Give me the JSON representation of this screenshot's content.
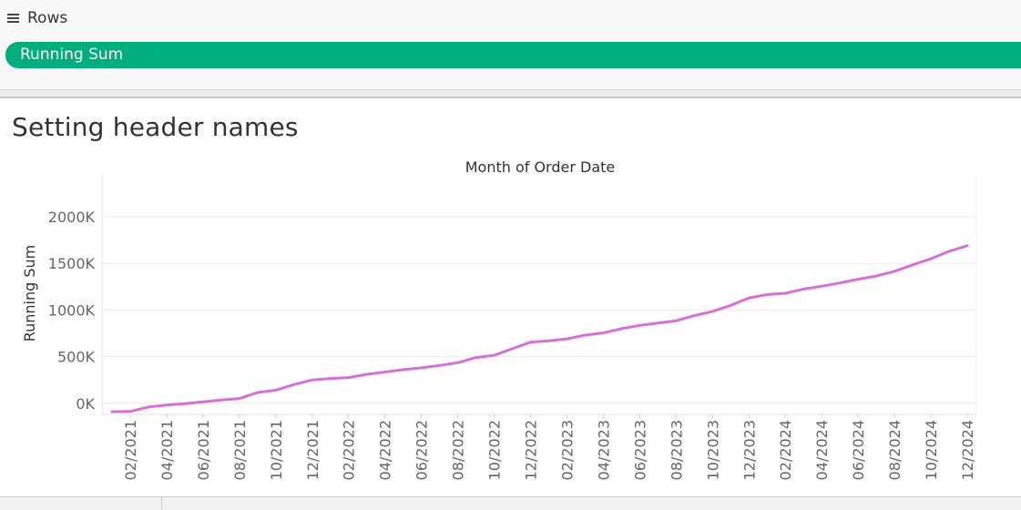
{
  "shelf": {
    "rows_label": "Rows",
    "pill_label": "Running Sum",
    "pill_color": "#00ad7c"
  },
  "sheet": {
    "title": "Setting header names"
  },
  "chart_data": {
    "type": "line",
    "title": "Month of Order Date",
    "ylabel": "Running Sum",
    "xlabel": "",
    "line_color": "#d670d6",
    "ylim": [
      -100,
      2450
    ],
    "yticks": [
      {
        "value": 0,
        "label": "0K"
      },
      {
        "value": 500,
        "label": "500K"
      },
      {
        "value": 1000,
        "label": "1000K"
      },
      {
        "value": 1500,
        "label": "1500K"
      },
      {
        "value": 2000,
        "label": "2000K"
      }
    ],
    "grid": true,
    "x": [
      "01/2021",
      "02/2021",
      "03/2021",
      "04/2021",
      "05/2021",
      "06/2021",
      "07/2021",
      "08/2021",
      "09/2021",
      "10/2021",
      "11/2021",
      "12/2021",
      "01/2022",
      "02/2022",
      "03/2022",
      "04/2022",
      "05/2022",
      "06/2022",
      "07/2022",
      "08/2022",
      "09/2022",
      "10/2022",
      "11/2022",
      "12/2022",
      "01/2023",
      "02/2023",
      "03/2023",
      "04/2023",
      "05/2023",
      "06/2023",
      "07/2023",
      "08/2023",
      "09/2023",
      "10/2023",
      "11/2023",
      "12/2023",
      "01/2024",
      "02/2024",
      "03/2024",
      "04/2024",
      "05/2024",
      "06/2024",
      "07/2024",
      "08/2024",
      "09/2024",
      "10/2024",
      "11/2024",
      "12/2024"
    ],
    "x_tick_labels": [
      "02/2021",
      "04/2021",
      "06/2021",
      "08/2021",
      "10/2021",
      "12/2021",
      "02/2022",
      "04/2022",
      "06/2022",
      "08/2022",
      "10/2022",
      "12/2022",
      "02/2023",
      "04/2023",
      "06/2023",
      "08/2023",
      "10/2023",
      "12/2023",
      "02/2024",
      "04/2024",
      "06/2024",
      "08/2024",
      "10/2024",
      "12/2024"
    ],
    "series": [
      {
        "name": "Running Sum",
        "values": [
          -90,
          -88,
          -40,
          -20,
          -5,
          15,
          35,
          50,
          115,
          140,
          200,
          250,
          265,
          275,
          310,
          335,
          360,
          380,
          405,
          435,
          490,
          515,
          585,
          655,
          670,
          690,
          730,
          755,
          800,
          835,
          860,
          885,
          940,
          985,
          1050,
          1130,
          1165,
          1180,
          1225,
          1255,
          1290,
          1330,
          1365,
          1415,
          1485,
          1550,
          1630,
          1690
        ]
      }
    ]
  }
}
